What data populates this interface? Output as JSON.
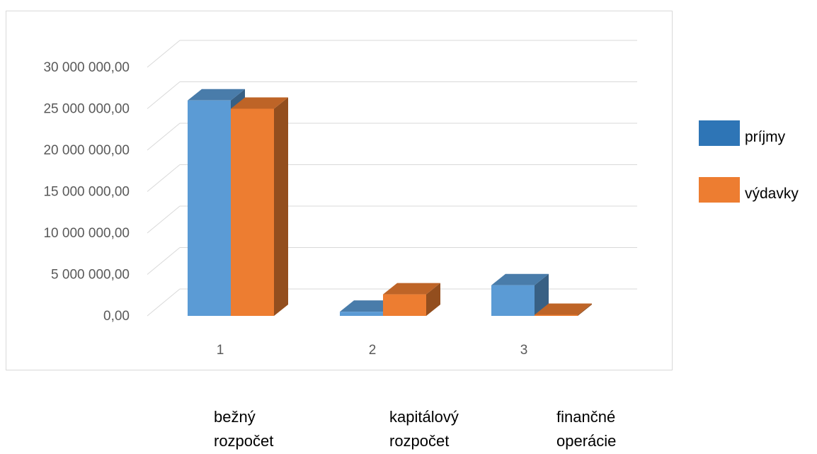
{
  "chart_data": {
    "type": "bar",
    "style": "3d-clustered-column",
    "categories": [
      "1",
      "2",
      "3"
    ],
    "series": [
      {
        "name": "príjmy",
        "color": "#5b9bd5",
        "values": [
          26000000,
          500000,
          3700000
        ]
      },
      {
        "name": "výdavky",
        "color": "#ed7d31",
        "values": [
          25000000,
          2600000,
          100000
        ]
      }
    ],
    "yticks": [
      "0,00",
      "5 000 000,00",
      "10 000 000,00",
      "15 000 000,00",
      "20 000 000,00",
      "25 000 000,00",
      "30 000 000,00"
    ],
    "ylim": [
      0,
      30000000
    ],
    "grid": true,
    "legend_position": "right"
  },
  "legend": {
    "items": [
      {
        "label": "príjmy",
        "color": "#2e75b6"
      },
      {
        "label": "výdavky",
        "color": "#ed7d31"
      }
    ]
  },
  "notes": [
    {
      "line1": "bežný",
      "line2": "rozpočet"
    },
    {
      "line1": "kapitálový",
      "line2": "rozpočet"
    },
    {
      "line1": "finančné",
      "line2": "operácie"
    }
  ]
}
